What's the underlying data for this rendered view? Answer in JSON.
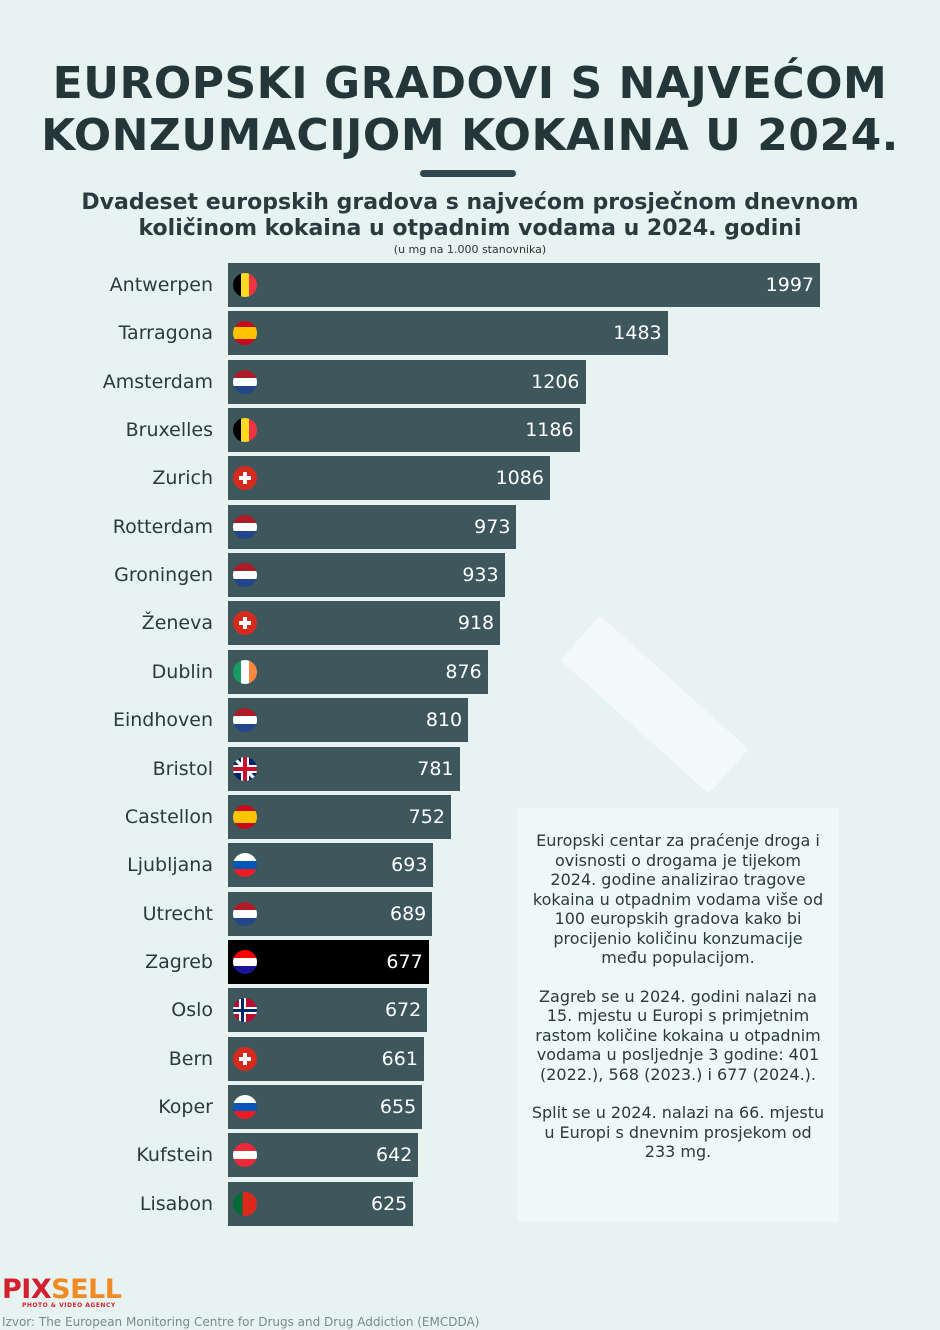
{
  "title_line1": "EUROPSKI GRADOVI S NAJVEĆOM",
  "title_line2": "KONZUMACIJOM KOKAINA U 2024.",
  "subtitle_line1": "Dvadeset europskih gradova s najvećom prosječnom dnevnom",
  "subtitle_line2": "količinom kokaina u otpadnim vodama u 2024. godini",
  "unit": "(u mg na 1.000 stanovnika)",
  "colors": {
    "bar": "#3d575c",
    "highlight": "#000000",
    "background": "#e6f3f1"
  },
  "chart_data": {
    "type": "bar",
    "orientation": "horizontal",
    "highlight": "Zagreb",
    "xlim": [
      0,
      1997
    ],
    "categories": [
      "Antwerpen",
      "Tarragona",
      "Amsterdam",
      "Bruxelles",
      "Zurich",
      "Rotterdam",
      "Groningen",
      "Ženeva",
      "Dublin",
      "Eindhoven",
      "Bristol",
      "Castellon",
      "Ljubljana",
      "Utrecht",
      "Zagreb",
      "Oslo",
      "Bern",
      "Koper",
      "Kufstein",
      "Lisabon"
    ],
    "values": [
      1997,
      1483,
      1206,
      1186,
      1086,
      973,
      933,
      918,
      876,
      810,
      781,
      752,
      693,
      689,
      677,
      672,
      661,
      655,
      642,
      625
    ],
    "flags": [
      "belgium-flag-icon",
      "spain-flag-icon",
      "netherlands-flag-icon",
      "belgium-flag-icon",
      "switzerland-flag-icon",
      "netherlands-flag-icon",
      "netherlands-flag-icon",
      "switzerland-flag-icon",
      "ireland-flag-icon",
      "netherlands-flag-icon",
      "uk-flag-icon",
      "spain-flag-icon",
      "slovenia-flag-icon",
      "netherlands-flag-icon",
      "croatia-flag-icon",
      "norway-flag-icon",
      "switzerland-flag-icon",
      "slovenia-flag-icon",
      "austria-flag-icon",
      "portugal-flag-icon"
    ]
  },
  "info": {
    "p1": "Europski centar za praćenje droga i ovisnosti o drogama je tijekom 2024. godine analizirao tragove kokaina u otpadnim vodama više od 100 europskih gradova kako bi procijenio količinu konzumacije među populacijom.",
    "p2": "Zagreb se u 2024. godini nalazi na 15. mjestu u Europi s primjetnim rastom količine kokaina u otpadnim vodama u posljednje 3 godine: 401 (2022.), 568 (2023.) i 677 (2024.).",
    "p3": "Split se u 2024. nalazi na 66. mjestu u Europi s dnevnim prosjekom od 233 mg."
  },
  "logo": {
    "part1": "PIX",
    "part2": "SELL",
    "tagline": "PHOTO & VIDEO AGENCY"
  },
  "source": "Izvor: The European Monitoring Centre for Drugs and Drug Addiction (EMCDDA)"
}
